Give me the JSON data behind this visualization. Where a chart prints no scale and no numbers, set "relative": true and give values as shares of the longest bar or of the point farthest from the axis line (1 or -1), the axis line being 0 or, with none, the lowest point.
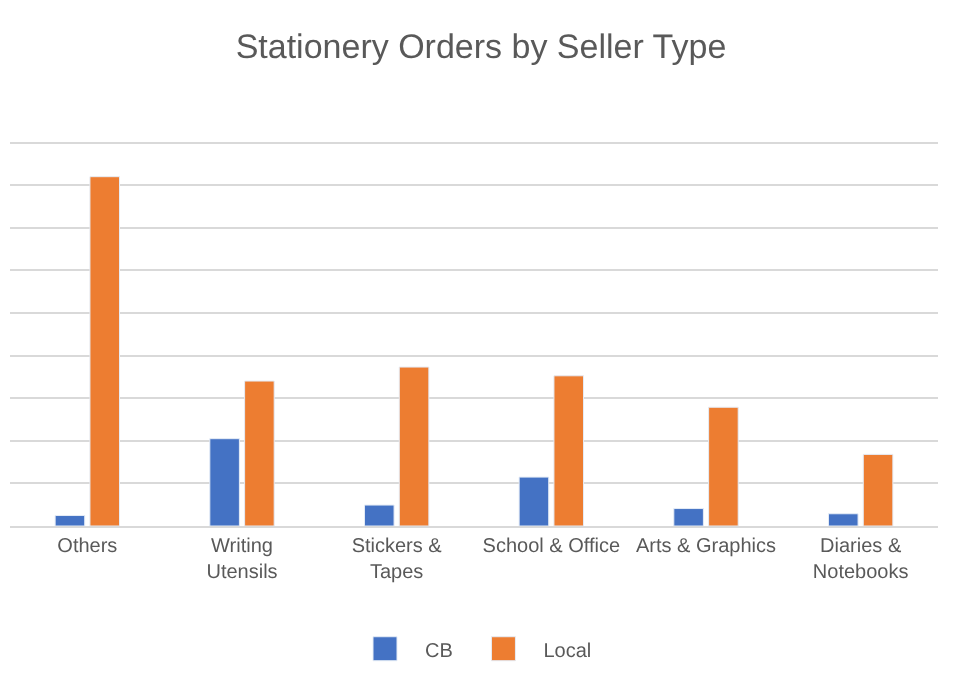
{
  "chart_data": {
    "type": "bar",
    "title": "Stationery Orders by Seller Type",
    "categories": [
      "Others",
      "Writing Utensils",
      "Stickers & Tapes",
      "School & Office",
      "Arts & Graphics",
      "Diaries & Notebooks"
    ],
    "series": [
      {
        "name": "CB",
        "color": "#4472c4",
        "values": [
          0.03,
          0.25,
          0.06,
          0.14,
          0.05,
          0.035
        ]
      },
      {
        "name": "Local",
        "color": "#ed7d31",
        "values": [
          1,
          0.415,
          0.455,
          0.43,
          0.34,
          0.205
        ]
      }
    ],
    "relative": true,
    "grid": "y",
    "legend": "bottom"
  }
}
